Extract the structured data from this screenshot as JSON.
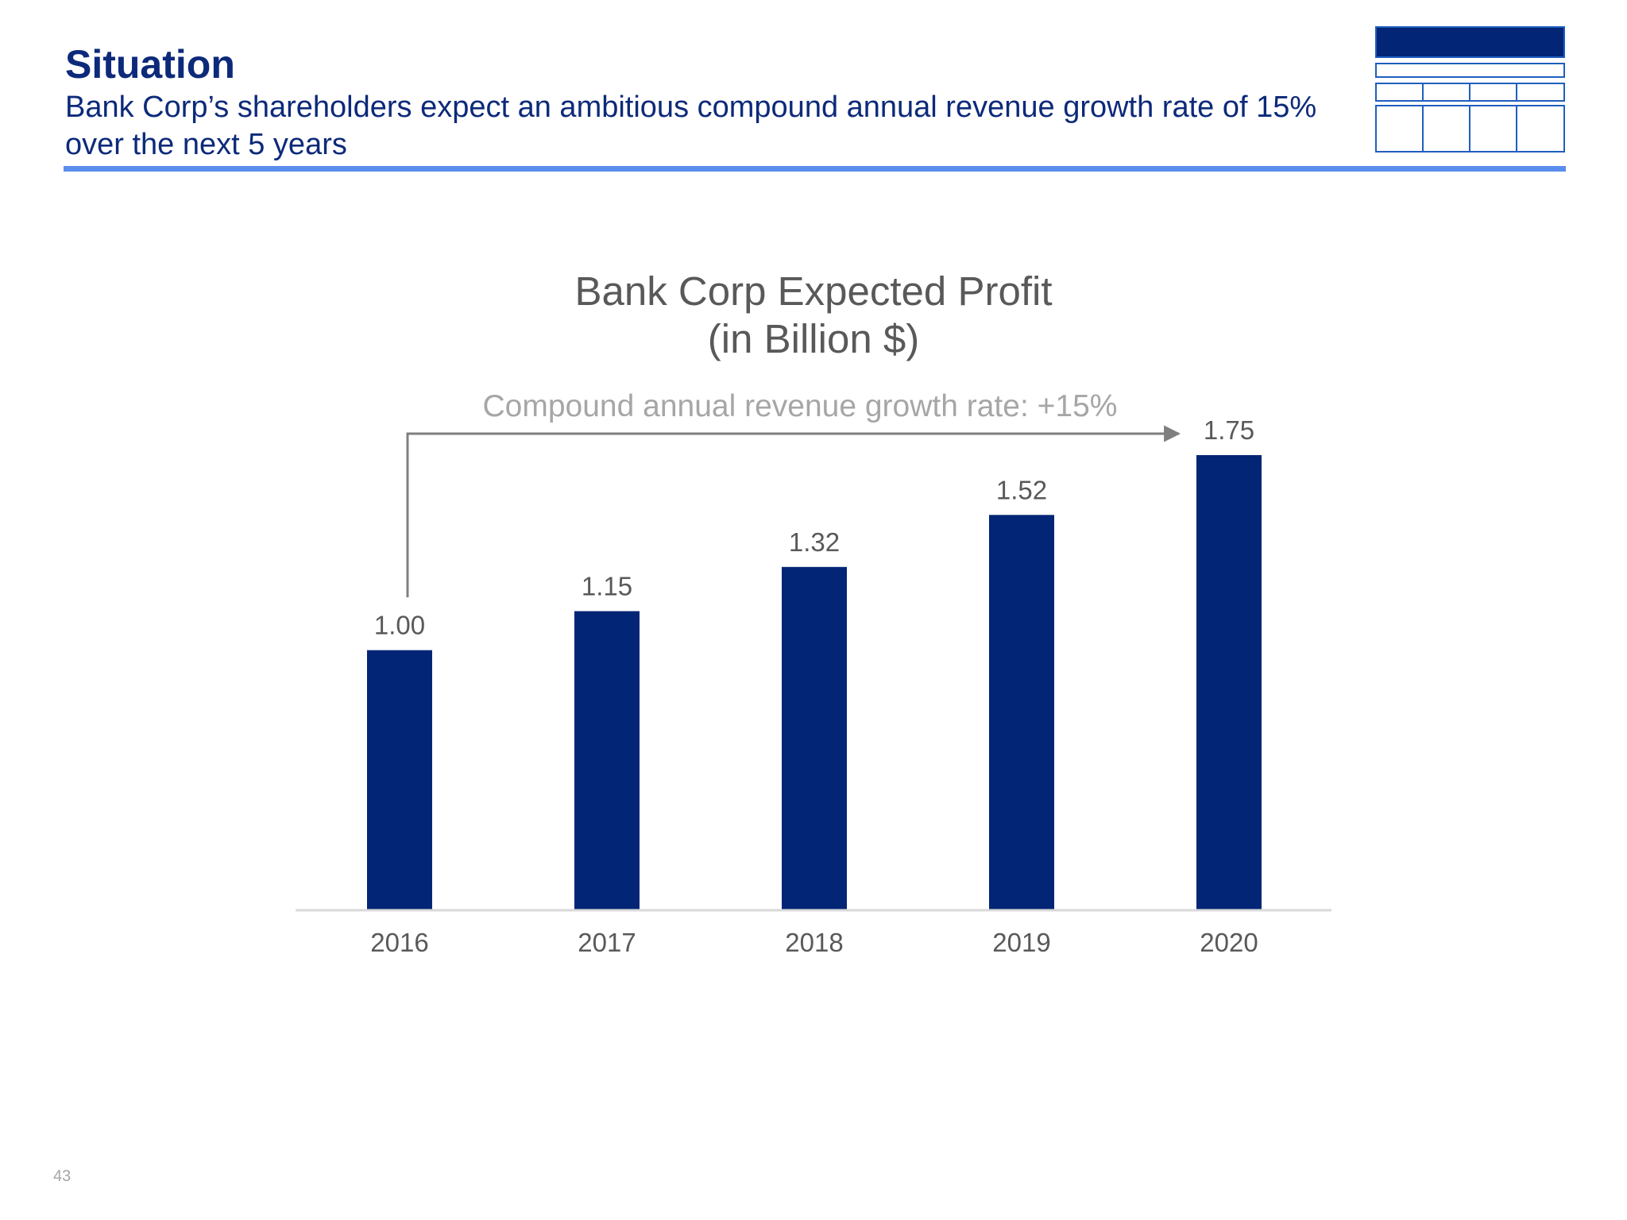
{
  "slide": {
    "title": "Situation",
    "subtitle": "Bank Corp’s shareholders expect an ambitious compound annual revenue growth rate of 15% over the next 5 years",
    "page_number": "43"
  },
  "colors": {
    "accent": "#0d2a7a",
    "bar": "#022576",
    "rule": "#5b8ded",
    "text_gray": "#595959",
    "annotation_gray": "#a6a6a6"
  },
  "chart_data": {
    "type": "bar",
    "title": "Bank Corp Expected Profit",
    "subtitle": "(in Billion $)",
    "categories": [
      "2016",
      "2017",
      "2018",
      "2019",
      "2020"
    ],
    "values": [
      1.0,
      1.15,
      1.32,
      1.52,
      1.75
    ],
    "value_labels": [
      "1.00",
      "1.15",
      "1.32",
      "1.52",
      "1.75"
    ],
    "annotation": "Compound annual revenue growth rate: +15%",
    "ylim": [
      0,
      1.75
    ],
    "grid": false,
    "legend": "none"
  }
}
